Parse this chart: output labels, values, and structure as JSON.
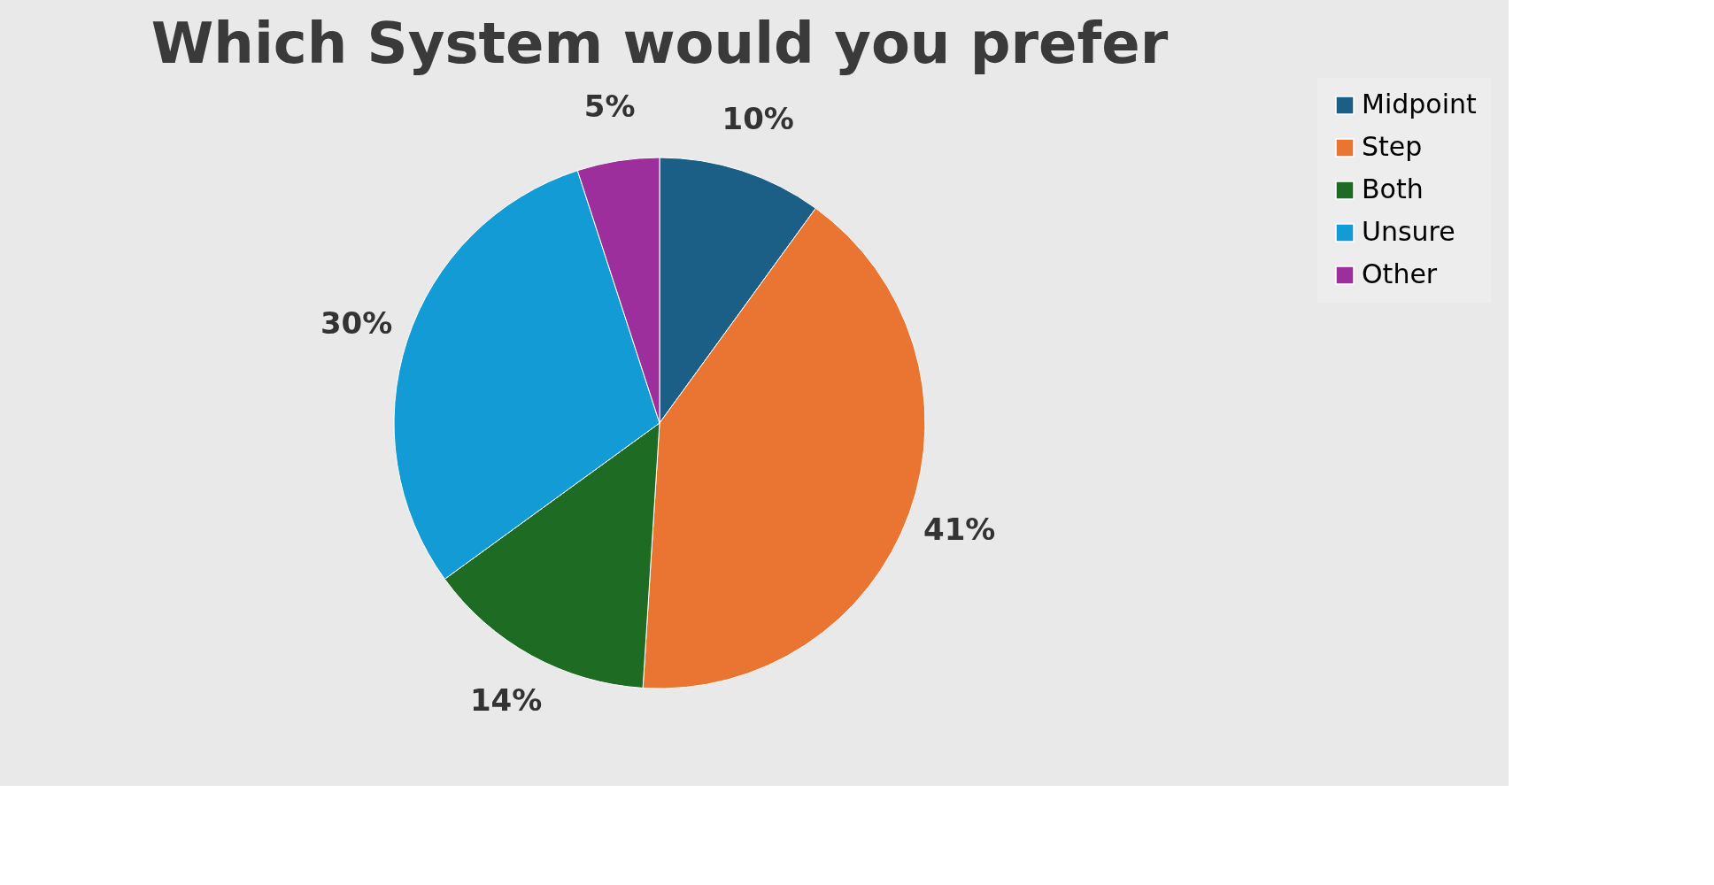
{
  "chart_data": {
    "type": "pie",
    "title": "Which System would you prefer",
    "categories": [
      "Midpoint",
      "Step",
      "Both",
      "Unsure",
      "Other"
    ],
    "values": [
      10,
      41,
      14,
      30,
      5
    ],
    "colors": [
      "#1b5e86",
      "#ea7431",
      "#1e6b24",
      "#139bd6",
      "#9c2f9b"
    ],
    "value_labels": [
      "10%",
      "41%",
      "14%",
      "30%",
      "5%"
    ],
    "legend": "right"
  }
}
